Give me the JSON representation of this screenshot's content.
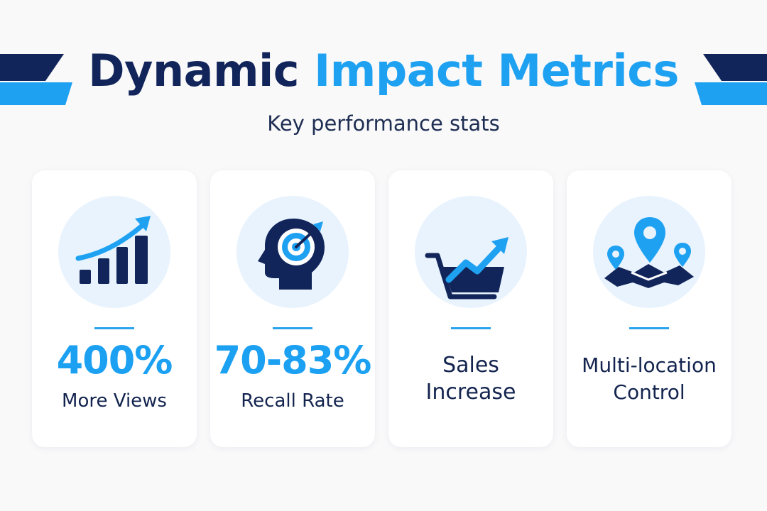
{
  "header": {
    "title_part1": "Dynamic",
    "title_part2": "Impact Metrics",
    "subtitle": "Key performance stats"
  },
  "colors": {
    "navy": "#12255a",
    "blue": "#1fa1f2",
    "icon_bg": "#e8f3fd"
  },
  "cards": [
    {
      "icon": "bar-growth-chart-icon",
      "value": "400%",
      "label": "More Views"
    },
    {
      "icon": "head-target-icon",
      "value": "70-83%",
      "label": "Recall Rate"
    },
    {
      "icon": "cart-growth-icon",
      "label_line1": "Sales",
      "label_line2": "Increase"
    },
    {
      "icon": "map-locations-icon",
      "label_line1": "Multi-location",
      "label_line2": "Control"
    }
  ]
}
